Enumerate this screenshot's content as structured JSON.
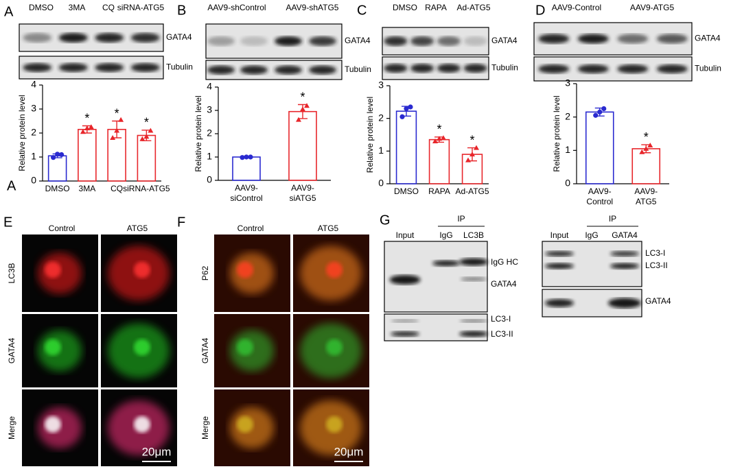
{
  "panels": {
    "A": {
      "letter": "A",
      "lanes": [
        "DMSO",
        "3MA",
        "CQ",
        "siRNA-ATG5"
      ],
      "blots": [
        "GATA4",
        "Tubulin"
      ]
    },
    "B": {
      "letter": "B",
      "lanes": [
        "AAV9-shControl",
        "AAV9-shATG5"
      ],
      "blots": [
        "GATA4",
        "Tubulin"
      ]
    },
    "C": {
      "letter": "C",
      "lanes": [
        "DMSO",
        "RAPA",
        "Ad-ATG5"
      ],
      "blots": [
        "GATA4",
        "Tubulin"
      ]
    },
    "D": {
      "letter": "D",
      "lanes": [
        "AAV9-Control",
        "AAV9-ATG5"
      ],
      "blots": [
        "GATA4",
        "Tubulin"
      ]
    },
    "E": {
      "letter": "E",
      "columns": [
        "Control",
        "ATG5"
      ],
      "rows": [
        "LC3B",
        "GATA4",
        "Merge"
      ],
      "scale_bar": "20μm"
    },
    "F": {
      "letter": "F",
      "columns": [
        "Control",
        "ATG5"
      ],
      "rows": [
        "P62",
        "GATA4",
        "Merge"
      ],
      "scale_bar": "20μm"
    },
    "G": {
      "letter": "G",
      "left": {
        "lanes": [
          "Input",
          "IgG",
          "LC3B"
        ],
        "ip": "IP",
        "bands": [
          "IgG HC",
          "GATA4",
          "LC3-I",
          "LC3-II"
        ]
      },
      "right": {
        "lanes": [
          "Input",
          "IgG",
          "GATA4"
        ],
        "ip": "IP",
        "bands": [
          "LC3-I",
          "LC3-II",
          "GATA4"
        ]
      }
    }
  },
  "chart_data": [
    {
      "type": "bar",
      "ylabel": "Relative protein level",
      "categories": [
        "DMSO",
        "3MA",
        "CQ",
        "siRNA-ATG5"
      ],
      "values": [
        1.05,
        2.15,
        2.15,
        1.9
      ],
      "errors": [
        0.08,
        0.15,
        0.35,
        0.22
      ],
      "points": [
        [
          0.98,
          1.12,
          1.1
        ],
        [
          2.05,
          2.2,
          2.25
        ],
        [
          1.8,
          2.1,
          2.55
        ],
        [
          1.75,
          1.85,
          2.1
        ]
      ],
      "colors": [
        "#2a2ad0",
        "#e8262b",
        "#e8262b",
        "#e8262b"
      ],
      "significance": [
        null,
        "*",
        "*",
        "*"
      ],
      "ylim": [
        0,
        4
      ],
      "yticks": [
        0,
        1,
        2,
        3,
        4
      ]
    },
    {
      "type": "bar",
      "ylabel": "Relative protein level",
      "categories": [
        [
          "AAV9-",
          "siControl"
        ],
        [
          "AAV9-",
          "siATG5"
        ]
      ],
      "values": [
        1.0,
        2.95
      ],
      "errors": [
        0.03,
        0.3
      ],
      "points": [
        [
          0.98,
          1.0,
          1.0
        ],
        [
          2.6,
          3.05,
          3.2
        ]
      ],
      "colors": [
        "#2a2ad0",
        "#e8262b"
      ],
      "significance": [
        null,
        "*"
      ],
      "ylim": [
        0,
        4
      ],
      "yticks": [
        0,
        1,
        2,
        3,
        4
      ]
    },
    {
      "type": "bar",
      "ylabel": "Relative protein level",
      "categories": [
        "DMSO",
        "RAPA",
        "Ad-ATG5"
      ],
      "values": [
        2.22,
        1.35,
        0.9
      ],
      "errors": [
        0.15,
        0.08,
        0.2
      ],
      "points": [
        [
          2.05,
          2.3,
          2.35
        ],
        [
          1.3,
          1.38,
          1.4
        ],
        [
          0.72,
          0.9,
          1.1
        ]
      ],
      "colors": [
        "#2a2ad0",
        "#e8262b",
        "#e8262b"
      ],
      "significance": [
        null,
        "*",
        "*"
      ],
      "ylim": [
        0,
        3
      ],
      "yticks": [
        0,
        1,
        2,
        3
      ]
    },
    {
      "type": "bar",
      "ylabel": "Relative protein level",
      "categories": [
        [
          "AAV9-",
          "Control"
        ],
        [
          "AAV9-",
          "ATG5"
        ]
      ],
      "values": [
        2.15,
        1.05
      ],
      "errors": [
        0.12,
        0.12
      ],
      "points": [
        [
          2.05,
          2.15,
          2.25
        ],
        [
          0.95,
          1.05,
          1.15
        ]
      ],
      "colors": [
        "#2a2ad0",
        "#e8262b"
      ],
      "significance": [
        null,
        "*"
      ],
      "ylim": [
        0,
        3
      ],
      "yticks": [
        0,
        1,
        2,
        3
      ]
    }
  ]
}
